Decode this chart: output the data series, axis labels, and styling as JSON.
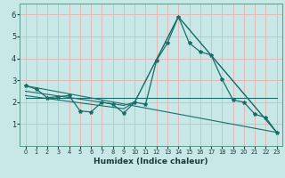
{
  "xlabel": "Humidex (Indice chaleur)",
  "bg_color": "#c8e8e8",
  "plot_bg_color": "#c8e8e8",
  "grid_color": "#e8b0b0",
  "line_color": "#1a6e6a",
  "xlim": [
    -0.5,
    23.5
  ],
  "ylim": [
    0,
    6.5
  ],
  "yticks": [
    1,
    2,
    3,
    4,
    5,
    6
  ],
  "xticks": [
    0,
    1,
    2,
    3,
    4,
    5,
    6,
    7,
    8,
    9,
    10,
    11,
    12,
    13,
    14,
    15,
    16,
    17,
    18,
    19,
    20,
    21,
    22,
    23
  ],
  "series_main": {
    "x": [
      0,
      1,
      2,
      3,
      4,
      5,
      6,
      7,
      8,
      9,
      10,
      11,
      12,
      13,
      14,
      15,
      16,
      17,
      18,
      19,
      20,
      21,
      22,
      23
    ],
    "y": [
      2.75,
      2.6,
      2.2,
      2.25,
      2.3,
      1.6,
      1.55,
      2.0,
      1.9,
      1.5,
      2.0,
      1.9,
      3.9,
      4.7,
      5.9,
      4.7,
      4.3,
      4.15,
      3.05,
      2.1,
      2.0,
      1.45,
      1.3,
      0.62
    ]
  },
  "series_line1": {
    "x": [
      0,
      23
    ],
    "y": [
      2.75,
      0.62
    ]
  },
  "series_line2": {
    "x": [
      0,
      20,
      23
    ],
    "y": [
      2.2,
      2.2,
      2.2
    ]
  },
  "series_line3": {
    "x": [
      0,
      9,
      10,
      14,
      23
    ],
    "y": [
      2.5,
      1.85,
      2.0,
      5.9,
      0.62
    ]
  },
  "series_line4": {
    "x": [
      0,
      9,
      10,
      14,
      23
    ],
    "y": [
      2.3,
      1.7,
      2.0,
      5.9,
      0.62
    ]
  }
}
